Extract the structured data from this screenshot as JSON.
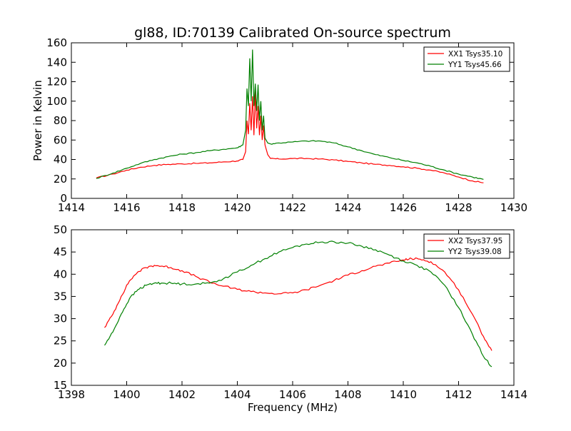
{
  "chart_data": [
    {
      "type": "line",
      "title": "gl88, ID:70139 Calibrated On-source spectrum",
      "xlabel": "",
      "ylabel": "Power in Kelvin",
      "xlim": [
        1414,
        1430
      ],
      "ylim": [
        0,
        160
      ],
      "xticks": [
        1414,
        1416,
        1418,
        1420,
        1422,
        1424,
        1426,
        1428,
        1430
      ],
      "yticks": [
        0,
        20,
        40,
        60,
        80,
        100,
        120,
        140,
        160
      ],
      "legend": "top-right",
      "grid": false,
      "series": [
        {
          "name": "XX1 Tsys35.10",
          "color": "#ff0000",
          "x": [
            1414.9,
            1415.5,
            1416.0,
            1416.5,
            1417.0,
            1417.5,
            1418.0,
            1418.5,
            1419.0,
            1419.5,
            1420.0,
            1420.2,
            1420.3,
            1420.35,
            1420.4,
            1420.45,
            1420.5,
            1420.55,
            1420.6,
            1420.65,
            1420.7,
            1420.75,
            1420.8,
            1420.85,
            1420.9,
            1420.95,
            1421.0,
            1421.1,
            1421.2,
            1421.5,
            1422.0,
            1422.5,
            1423.0,
            1423.5,
            1424.0,
            1424.5,
            1425.0,
            1425.5,
            1426.0,
            1426.5,
            1427.0,
            1427.5,
            1428.0,
            1428.5,
            1428.9
          ],
          "values": [
            21,
            25,
            29,
            32,
            34,
            35,
            35.5,
            36,
            36.5,
            37.5,
            38.5,
            40,
            48,
            80,
            66,
            98,
            70,
            105,
            65,
            110,
            72,
            95,
            65,
            85,
            60,
            75,
            55,
            45,
            41,
            40.5,
            41,
            41,
            40.5,
            39.5,
            38,
            36.5,
            35,
            34,
            32.5,
            31,
            29,
            26,
            22,
            18,
            16
          ]
        },
        {
          "name": "YY1 Tsys45.66",
          "color": "#008000",
          "x": [
            1414.9,
            1415.5,
            1416.0,
            1416.5,
            1417.0,
            1417.5,
            1418.0,
            1418.5,
            1419.0,
            1419.5,
            1420.0,
            1420.2,
            1420.3,
            1420.35,
            1420.4,
            1420.45,
            1420.5,
            1420.55,
            1420.6,
            1420.65,
            1420.7,
            1420.75,
            1420.8,
            1420.85,
            1420.9,
            1420.95,
            1421.0,
            1421.1,
            1421.2,
            1421.5,
            1422.0,
            1422.5,
            1423.0,
            1423.5,
            1424.0,
            1424.5,
            1425.0,
            1425.5,
            1426.0,
            1426.5,
            1427.0,
            1427.5,
            1428.0,
            1428.5,
            1428.9
          ],
          "values": [
            20.5,
            26,
            31,
            36,
            40,
            43,
            45.5,
            47,
            49,
            50.5,
            52,
            55,
            70,
            113,
            95,
            144,
            100,
            153,
            95,
            118,
            90,
            117,
            80,
            100,
            70,
            85,
            62,
            57,
            56,
            57,
            58,
            59,
            59,
            57,
            53,
            49,
            45,
            42,
            39,
            36.5,
            33,
            29,
            25,
            22,
            19.5
          ]
        }
      ]
    },
    {
      "type": "line",
      "title": "",
      "xlabel": "Frequency (MHz)",
      "ylabel": "",
      "xlim": [
        1398,
        1414
      ],
      "ylim": [
        15,
        50
      ],
      "xticks": [
        1398,
        1400,
        1402,
        1404,
        1406,
        1408,
        1410,
        1412,
        1414
      ],
      "yticks": [
        15,
        20,
        25,
        30,
        35,
        40,
        45,
        50
      ],
      "legend": "top-right",
      "grid": false,
      "series": [
        {
          "name": "XX2 Tsys37.95",
          "color": "#ff0000",
          "x": [
            1399.2,
            1399.5,
            1399.8,
            1400.1,
            1400.4,
            1400.7,
            1401.0,
            1401.3,
            1401.6,
            1402.0,
            1402.5,
            1403.0,
            1403.5,
            1404.0,
            1404.5,
            1405.0,
            1405.5,
            1406.0,
            1406.5,
            1407.0,
            1407.5,
            1408.0,
            1408.5,
            1409.0,
            1409.5,
            1410.0,
            1410.3,
            1410.6,
            1411.0,
            1411.5,
            1412.0,
            1412.5,
            1412.9,
            1413.2
          ],
          "values": [
            28,
            31,
            35,
            38.5,
            40.5,
            41.5,
            42,
            41.8,
            41.5,
            40.8,
            39.5,
            38.2,
            37.3,
            36.6,
            36.1,
            35.8,
            35.6,
            35.8,
            36.5,
            37.5,
            38.6,
            39.8,
            40.8,
            41.8,
            42.5,
            43.2,
            43.5,
            43.4,
            42.8,
            40.5,
            36.5,
            31,
            26,
            22.8
          ]
        },
        {
          "name": "YY2 Tsys39.08",
          "color": "#008000",
          "x": [
            1399.2,
            1399.5,
            1399.8,
            1400.1,
            1400.4,
            1400.7,
            1401.0,
            1401.3,
            1401.6,
            1402.0,
            1402.5,
            1403.0,
            1403.5,
            1404.0,
            1404.5,
            1405.0,
            1405.5,
            1406.0,
            1406.5,
            1407.0,
            1407.5,
            1408.0,
            1408.5,
            1409.0,
            1409.5,
            1410.0,
            1410.5,
            1411.0,
            1411.5,
            1412.0,
            1412.5,
            1412.9,
            1413.2
          ],
          "values": [
            24,
            27,
            31,
            34.5,
            36.5,
            37.5,
            38,
            38,
            38,
            37.8,
            37.8,
            38,
            39,
            40.5,
            42,
            43.5,
            45,
            46,
            46.8,
            47.2,
            47.3,
            47,
            46.3,
            45.5,
            44.3,
            43,
            42,
            40.5,
            37.5,
            32.5,
            26.5,
            21.5,
            19.2
          ]
        }
      ]
    }
  ]
}
